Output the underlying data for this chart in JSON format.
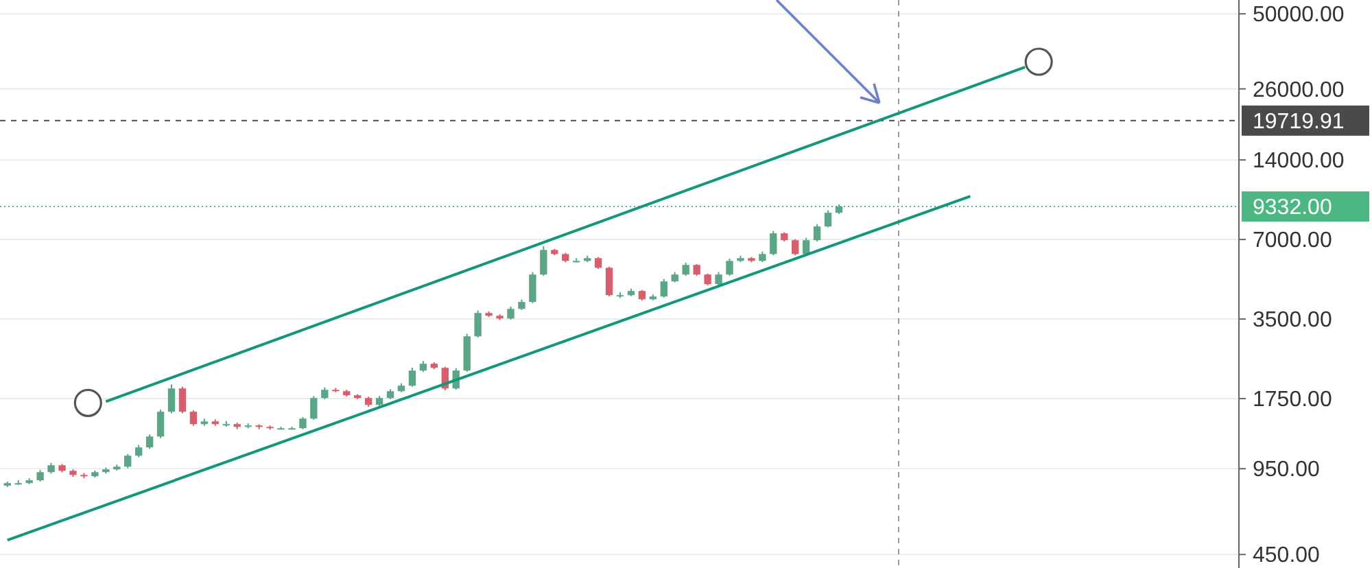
{
  "chart_data": {
    "type": "candlestick",
    "log": true,
    "grid": "y",
    "tick_labels": "y",
    "categories": [
      null,
      null,
      null,
      null,
      null,
      null,
      null,
      null,
      null,
      null,
      null,
      null,
      null,
      null,
      null,
      null,
      null,
      null,
      null,
      null,
      null,
      null,
      null,
      null,
      null,
      null,
      null,
      null,
      null,
      null,
      null,
      null,
      null,
      null,
      null,
      null,
      null,
      null,
      null,
      null,
      null,
      null,
      null,
      null,
      null,
      null,
      null,
      null,
      null,
      null,
      null,
      null,
      null,
      null,
      null,
      null,
      null,
      null,
      null,
      null,
      null,
      null,
      null,
      null,
      null,
      null,
      null,
      null,
      null,
      null,
      null,
      null,
      null,
      null,
      null,
      null,
      null,
      null,
      null,
      null,
      null,
      null,
      null,
      null,
      null,
      null,
      null,
      null,
      null,
      null,
      null,
      null,
      null,
      null,
      null,
      null,
      null,
      null,
      null,
      null,
      null,
      null,
      null,
      null,
      null,
      null,
      null,
      null,
      null,
      null,
      null,
      null,
      null
    ],
    "ohlc": [
      [
        820,
        850,
        810,
        838
      ],
      [
        838,
        860,
        825,
        838
      ],
      [
        838,
        875,
        830,
        859
      ],
      [
        859,
        940,
        850,
        922
      ],
      [
        922,
        1000,
        910,
        979
      ],
      [
        979,
        990,
        920,
        933
      ],
      [
        933,
        945,
        885,
        900
      ],
      [
        900,
        915,
        875,
        890
      ],
      [
        890,
        935,
        880,
        922
      ],
      [
        922,
        960,
        910,
        945
      ],
      [
        945,
        985,
        935,
        967
      ],
      [
        967,
        1080,
        955,
        1064
      ],
      [
        1064,
        1170,
        1050,
        1144
      ],
      [
        1144,
        1280,
        1130,
        1258
      ],
      [
        1258,
        1590,
        1240,
        1561
      ],
      [
        1561,
        1980,
        1540,
        1912
      ],
      [
        1912,
        1940,
        1540,
        1561
      ],
      [
        1561,
        1580,
        1380,
        1401
      ],
      [
        1401,
        1470,
        1380,
        1435
      ],
      [
        1435,
        1460,
        1380,
        1401
      ],
      [
        1401,
        1440,
        1370,
        1401
      ],
      [
        1401,
        1420,
        1340,
        1368
      ],
      [
        1368,
        1410,
        1350,
        1385
      ],
      [
        1385,
        1400,
        1340,
        1368
      ],
      [
        1368,
        1385,
        1335,
        1352
      ],
      [
        1352,
        1370,
        1335,
        1352
      ],
      [
        1352,
        1370,
        1335,
        1352
      ],
      [
        1352,
        1490,
        1340,
        1470
      ],
      [
        1470,
        1790,
        1455,
        1759
      ],
      [
        1759,
        1930,
        1740,
        1889
      ],
      [
        1889,
        1920,
        1850,
        1867
      ],
      [
        1867,
        1890,
        1780,
        1801
      ],
      [
        1801,
        1820,
        1740,
        1759
      ],
      [
        1759,
        1780,
        1630,
        1657
      ],
      [
        1657,
        1790,
        1640,
        1759
      ],
      [
        1759,
        1900,
        1740,
        1867
      ],
      [
        1867,
        2000,
        1850,
        1959
      ],
      [
        1959,
        2290,
        1940,
        2234
      ],
      [
        2234,
        2430,
        2210,
        2371
      ],
      [
        2371,
        2400,
        2260,
        2288
      ],
      [
        2288,
        2310,
        1880,
        1912
      ],
      [
        1912,
        2280,
        1890,
        2234
      ],
      [
        2234,
        3080,
        2210,
        3012
      ],
      [
        3012,
        3770,
        2980,
        3690
      ],
      [
        3690,
        3740,
        3560,
        3602
      ],
      [
        3602,
        3650,
        3470,
        3517
      ],
      [
        3517,
        3900,
        3480,
        3824
      ],
      [
        3824,
        4150,
        3790,
        4061
      ],
      [
        4061,
        5270,
        4020,
        5157
      ],
      [
        5157,
        6600,
        5100,
        6390
      ],
      [
        6390,
        6450,
        6100,
        6166
      ],
      [
        6166,
        6230,
        5740,
        5808
      ],
      [
        5808,
        5950,
        5740,
        5808
      ],
      [
        5808,
        6080,
        5750,
        5951
      ],
      [
        5951,
        6010,
        5410,
        5471
      ],
      [
        5471,
        5520,
        4260,
        4311
      ],
      [
        4311,
        4420,
        4200,
        4311
      ],
      [
        4311,
        4560,
        4270,
        4469
      ],
      [
        4469,
        4510,
        4110,
        4159
      ],
      [
        4159,
        4340,
        4120,
        4260
      ],
      [
        4260,
        4960,
        4220,
        4860
      ],
      [
        4860,
        5270,
        4820,
        5157
      ],
      [
        5157,
        5720,
        5100,
        5608
      ],
      [
        5608,
        5650,
        5100,
        5157
      ],
      [
        5157,
        5200,
        4690,
        4745
      ],
      [
        4745,
        5270,
        4700,
        5157
      ],
      [
        5157,
        5930,
        5100,
        5808
      ],
      [
        5808,
        6080,
        5750,
        5951
      ],
      [
        5951,
        6010,
        5740,
        5808
      ],
      [
        5808,
        6300,
        5750,
        6166
      ],
      [
        6166,
        7540,
        6100,
        7385
      ],
      [
        7385,
        7450,
        6880,
        6957
      ],
      [
        6957,
        7020,
        6100,
        6166
      ],
      [
        6166,
        7100,
        6100,
        6957
      ],
      [
        6957,
        8000,
        6880,
        7842
      ],
      [
        7842,
        9020,
        7780,
        8836
      ],
      [
        8836,
        9500,
        8750,
        9332
      ],
      null,
      null,
      null,
      null,
      null,
      null,
      null,
      null,
      null,
      null,
      null,
      null,
      null,
      null,
      null,
      null,
      null,
      null,
      null,
      null,
      null,
      null,
      null,
      null,
      null,
      null,
      null,
      null,
      null,
      null,
      null,
      null,
      null,
      null,
      null,
      null
    ],
    "series": [
      {
        "type": "line",
        "color": "#13977a",
        "values": [
          null,
          null,
          null,
          null,
          null,
          null,
          null,
          null,
          null,
          1706,
          null,
          null,
          null,
          null,
          null,
          null,
          null,
          null,
          null,
          null,
          null,
          null,
          null,
          null,
          null,
          null,
          null,
          null,
          null,
          null,
          null,
          null,
          null,
          null,
          null,
          null,
          null,
          null,
          null,
          null,
          null,
          null,
          null,
          null,
          null,
          null,
          null,
          null,
          null,
          null,
          null,
          null,
          null,
          null,
          null,
          null,
          null,
          null,
          null,
          null,
          null,
          null,
          null,
          null,
          null,
          null,
          null,
          null,
          null,
          null,
          null,
          null,
          null,
          null,
          null,
          null,
          null,
          null,
          null,
          null,
          null,
          null,
          null,
          null,
          null,
          null,
          null,
          null,
          null,
          null,
          null,
          null,
          null,
          31400,
          null,
          null,
          null,
          null,
          null,
          null,
          null,
          null,
          null,
          null,
          null,
          null,
          null,
          null,
          null,
          null,
          null,
          null,
          null
        ]
      },
      {
        "type": "line",
        "color": "#13977a",
        "values": [
          510,
          null,
          null,
          null,
          null,
          null,
          null,
          null,
          null,
          null,
          null,
          null,
          null,
          null,
          null,
          null,
          null,
          null,
          null,
          null,
          null,
          null,
          null,
          null,
          null,
          null,
          null,
          null,
          null,
          null,
          null,
          null,
          null,
          null,
          null,
          null,
          null,
          null,
          null,
          null,
          null,
          null,
          null,
          null,
          null,
          null,
          null,
          null,
          null,
          null,
          null,
          null,
          null,
          null,
          null,
          null,
          null,
          null,
          null,
          null,
          null,
          null,
          null,
          null,
          null,
          null,
          null,
          null,
          null,
          null,
          null,
          null,
          null,
          null,
          null,
          null,
          null,
          null,
          null,
          null,
          null,
          null,
          null,
          null,
          null,
          null,
          null,
          null,
          10200,
          null,
          null,
          null,
          null,
          null,
          null,
          null,
          null,
          null,
          null,
          null,
          null,
          null,
          null,
          null,
          null,
          null,
          null,
          null,
          null,
          null,
          null,
          null,
          null
        ]
      }
    ],
    "ylim": [
      400,
      56400
    ],
    "yticks": [
      {
        "value": 450,
        "label": "450.00"
      },
      {
        "value": 950,
        "label": "950.00"
      },
      {
        "value": 1750,
        "label": "1750.00"
      },
      {
        "value": 3500,
        "label": "3500.00"
      },
      {
        "value": 7000,
        "label": "7000.00"
      },
      {
        "value": 14000,
        "label": "14000.00"
      },
      {
        "value": 26000,
        "label": "26000.00"
      },
      {
        "value": 50000,
        "label": "50000.00"
      }
    ],
    "ref_lines": [
      {
        "axis": "y",
        "value": 19719.91,
        "label": "19719.91",
        "color": "#4a4a4a",
        "line_style": "dashed"
      },
      {
        "axis": "y",
        "value": 9332,
        "label": "9332.00",
        "color": "#4cb782",
        "line_style": "dotted"
      }
    ]
  }
}
